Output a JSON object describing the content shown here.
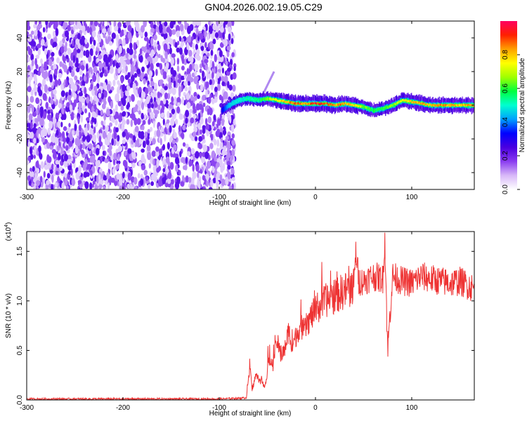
{
  "title": "GN04.2026.002.19.05.C29",
  "chart_data": [
    {
      "type": "heatmap",
      "xlabel": "Height of straight line (km)",
      "ylabel": "Frequency (Hz)",
      "xlim": [
        -300,
        165
      ],
      "ylim": [
        -50,
        50
      ],
      "xticks": [
        "-300",
        "-200",
        "-100",
        "0",
        "100"
      ],
      "yticks": [
        "40",
        "20",
        "0",
        "-20",
        "-40"
      ],
      "colorbar": {
        "label": "Normalized spectral amplitude",
        "range": [
          0.0,
          1.0
        ],
        "ticks": [
          "0.0",
          "0.2",
          "0.4",
          "0.6",
          "0.8"
        ],
        "colors": [
          "#ffffff",
          "#d8b8f8",
          "#8a3cf0",
          "#4a00e0",
          "#0000ff",
          "#00a0ff",
          "#00ffd0",
          "#00ff40",
          "#a0ff00",
          "#ffff00",
          "#ffa000",
          "#ff2000",
          "#ff0060"
        ]
      },
      "noise_region": {
        "x_from": -300,
        "x_to": -88,
        "description_level": 0.25
      },
      "signal_track": {
        "x": [
          -98,
          -90,
          -80,
          -70,
          -60,
          -50,
          -40,
          -30,
          -20,
          -10,
          0,
          10,
          20,
          30,
          40,
          50,
          60,
          70,
          80,
          90,
          100,
          110,
          120,
          130,
          140,
          150,
          165
        ],
        "freq": [
          -3,
          0,
          3,
          4,
          3,
          4,
          3,
          2,
          1,
          1,
          1,
          1,
          0,
          1,
          0,
          -1,
          -3,
          -2,
          0,
          3,
          2,
          1,
          0,
          0,
          0,
          0,
          0
        ],
        "amp": [
          0.3,
          0.45,
          0.5,
          0.55,
          0.6,
          0.7,
          0.8,
          0.9,
          0.95,
          0.9,
          1.0,
          0.95,
          0.9,
          0.9,
          0.85,
          0.7,
          0.6,
          0.65,
          0.7,
          0.8,
          0.85,
          0.9,
          0.85,
          0.9,
          0.9,
          0.85,
          0.9
        ]
      }
    },
    {
      "type": "line",
      "xlabel": "Height of straight line (km)",
      "ylabel": "SNR (10 * v/v)",
      "y_multiplier": "(x10",
      "y_multiplier_exp": "4",
      "xlim": [
        -300,
        165
      ],
      "ylim": [
        0,
        1.7
      ],
      "xticks": [
        "-300",
        "-200",
        "-100",
        "0",
        "100"
      ],
      "yticks": [
        "0.0",
        "0.5",
        "1.0",
        "1.5"
      ],
      "series": [
        {
          "color": "#ee3333",
          "x": [
            -300,
            -250,
            -200,
            -150,
            -100,
            -72,
            -68,
            -66,
            -62,
            -58,
            -52,
            -48,
            -44,
            -40,
            -36,
            -32,
            -28,
            -24,
            -20,
            -16,
            -12,
            -8,
            -4,
            0,
            10,
            20,
            30,
            40,
            42,
            45,
            50,
            60,
            70,
            72,
            75,
            80,
            90,
            100,
            110,
            120,
            130,
            140,
            150,
            160,
            165
          ],
          "y": [
            0.01,
            0.01,
            0.01,
            0.01,
            0.01,
            0.02,
            0.35,
            0.1,
            0.25,
            0.2,
            0.15,
            0.4,
            0.35,
            0.6,
            0.45,
            0.5,
            0.7,
            0.55,
            0.65,
            0.75,
            0.7,
            0.78,
            0.85,
            0.9,
            1.0,
            1.05,
            1.1,
            1.15,
            1.5,
            1.2,
            1.2,
            1.25,
            1.22,
            1.65,
            0.5,
            1.25,
            1.2,
            1.18,
            1.25,
            1.22,
            1.2,
            1.18,
            1.2,
            1.15,
            1.12
          ]
        }
      ]
    }
  ]
}
